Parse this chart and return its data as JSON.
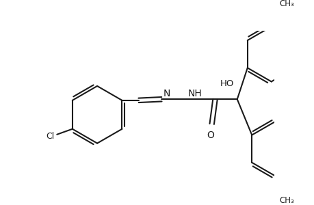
{
  "bg_color": "#ffffff",
  "line_color": "#1a1a1a",
  "line_width": 1.5,
  "figsize": [
    4.6,
    3.0
  ],
  "dpi": 100,
  "xlim": [
    0,
    460
  ],
  "ylim": [
    0,
    300
  ]
}
